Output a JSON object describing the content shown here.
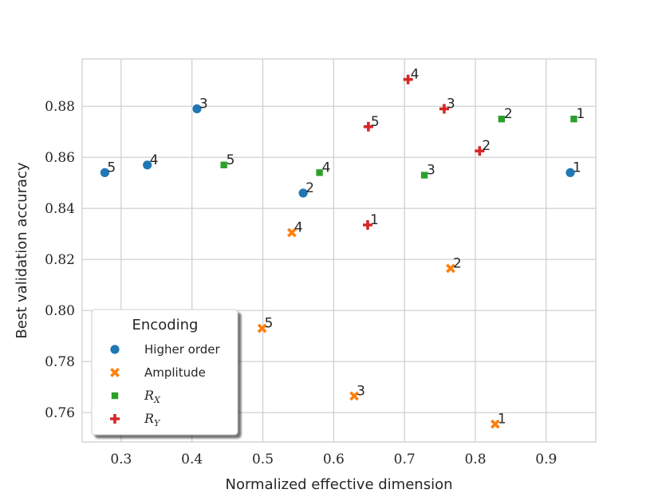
{
  "chart_data": {
    "type": "scatter",
    "title": "",
    "xlabel": "Normalized effective dimension",
    "ylabel": "Best validation accuracy",
    "xlim": [
      0.245,
      0.97
    ],
    "ylim": [
      0.7485,
      0.8985
    ],
    "xticks": [
      0.3,
      0.4,
      0.5,
      0.6,
      0.7,
      0.8,
      0.9
    ],
    "xtick_labels": [
      "0.3",
      "0.4",
      "0.5",
      "0.6",
      "0.7",
      "0.8",
      "0.9"
    ],
    "yticks": [
      0.76,
      0.78,
      0.8,
      0.82,
      0.84,
      0.86,
      0.88
    ],
    "ytick_labels": [
      "0.76",
      "0.78",
      "0.80",
      "0.82",
      "0.84",
      "0.86",
      "0.88"
    ],
    "grid": true,
    "legend": {
      "title": "Encoding",
      "position": "lower-left"
    },
    "series": [
      {
        "name": "Higher order",
        "marker": "circle",
        "color": "#1f77b4",
        "points": [
          {
            "x": 0.934,
            "y": 0.854,
            "label": "1"
          },
          {
            "x": 0.557,
            "y": 0.846,
            "label": "2"
          },
          {
            "x": 0.407,
            "y": 0.879,
            "label": "3"
          },
          {
            "x": 0.337,
            "y": 0.857,
            "label": "4"
          },
          {
            "x": 0.277,
            "y": 0.854,
            "label": "5"
          }
        ]
      },
      {
        "name": "Amplitude",
        "marker": "x",
        "color": "#ff7f0e",
        "points": [
          {
            "x": 0.828,
            "y": 0.7555,
            "label": "1"
          },
          {
            "x": 0.765,
            "y": 0.8165,
            "label": "2"
          },
          {
            "x": 0.629,
            "y": 0.7665,
            "label": "3"
          },
          {
            "x": 0.541,
            "y": 0.8305,
            "label": "4"
          },
          {
            "x": 0.499,
            "y": 0.793,
            "label": "5"
          }
        ]
      },
      {
        "name": "R_X",
        "name_main": "R",
        "name_sub": "X",
        "marker": "square",
        "color": "#2ca02c",
        "points": [
          {
            "x": 0.939,
            "y": 0.875,
            "label": "1"
          },
          {
            "x": 0.837,
            "y": 0.875,
            "label": "2"
          },
          {
            "x": 0.728,
            "y": 0.853,
            "label": "3"
          },
          {
            "x": 0.58,
            "y": 0.854,
            "label": "4"
          },
          {
            "x": 0.445,
            "y": 0.857,
            "label": "5"
          }
        ]
      },
      {
        "name": "R_Y",
        "name_main": "R",
        "name_sub": "Y",
        "marker": "plus",
        "color": "#d62728",
        "points": [
          {
            "x": 0.648,
            "y": 0.8335,
            "label": "1"
          },
          {
            "x": 0.806,
            "y": 0.8625,
            "label": "2"
          },
          {
            "x": 0.756,
            "y": 0.879,
            "label": "3"
          },
          {
            "x": 0.705,
            "y": 0.8905,
            "label": "4"
          },
          {
            "x": 0.649,
            "y": 0.872,
            "label": "5"
          }
        ]
      }
    ]
  }
}
